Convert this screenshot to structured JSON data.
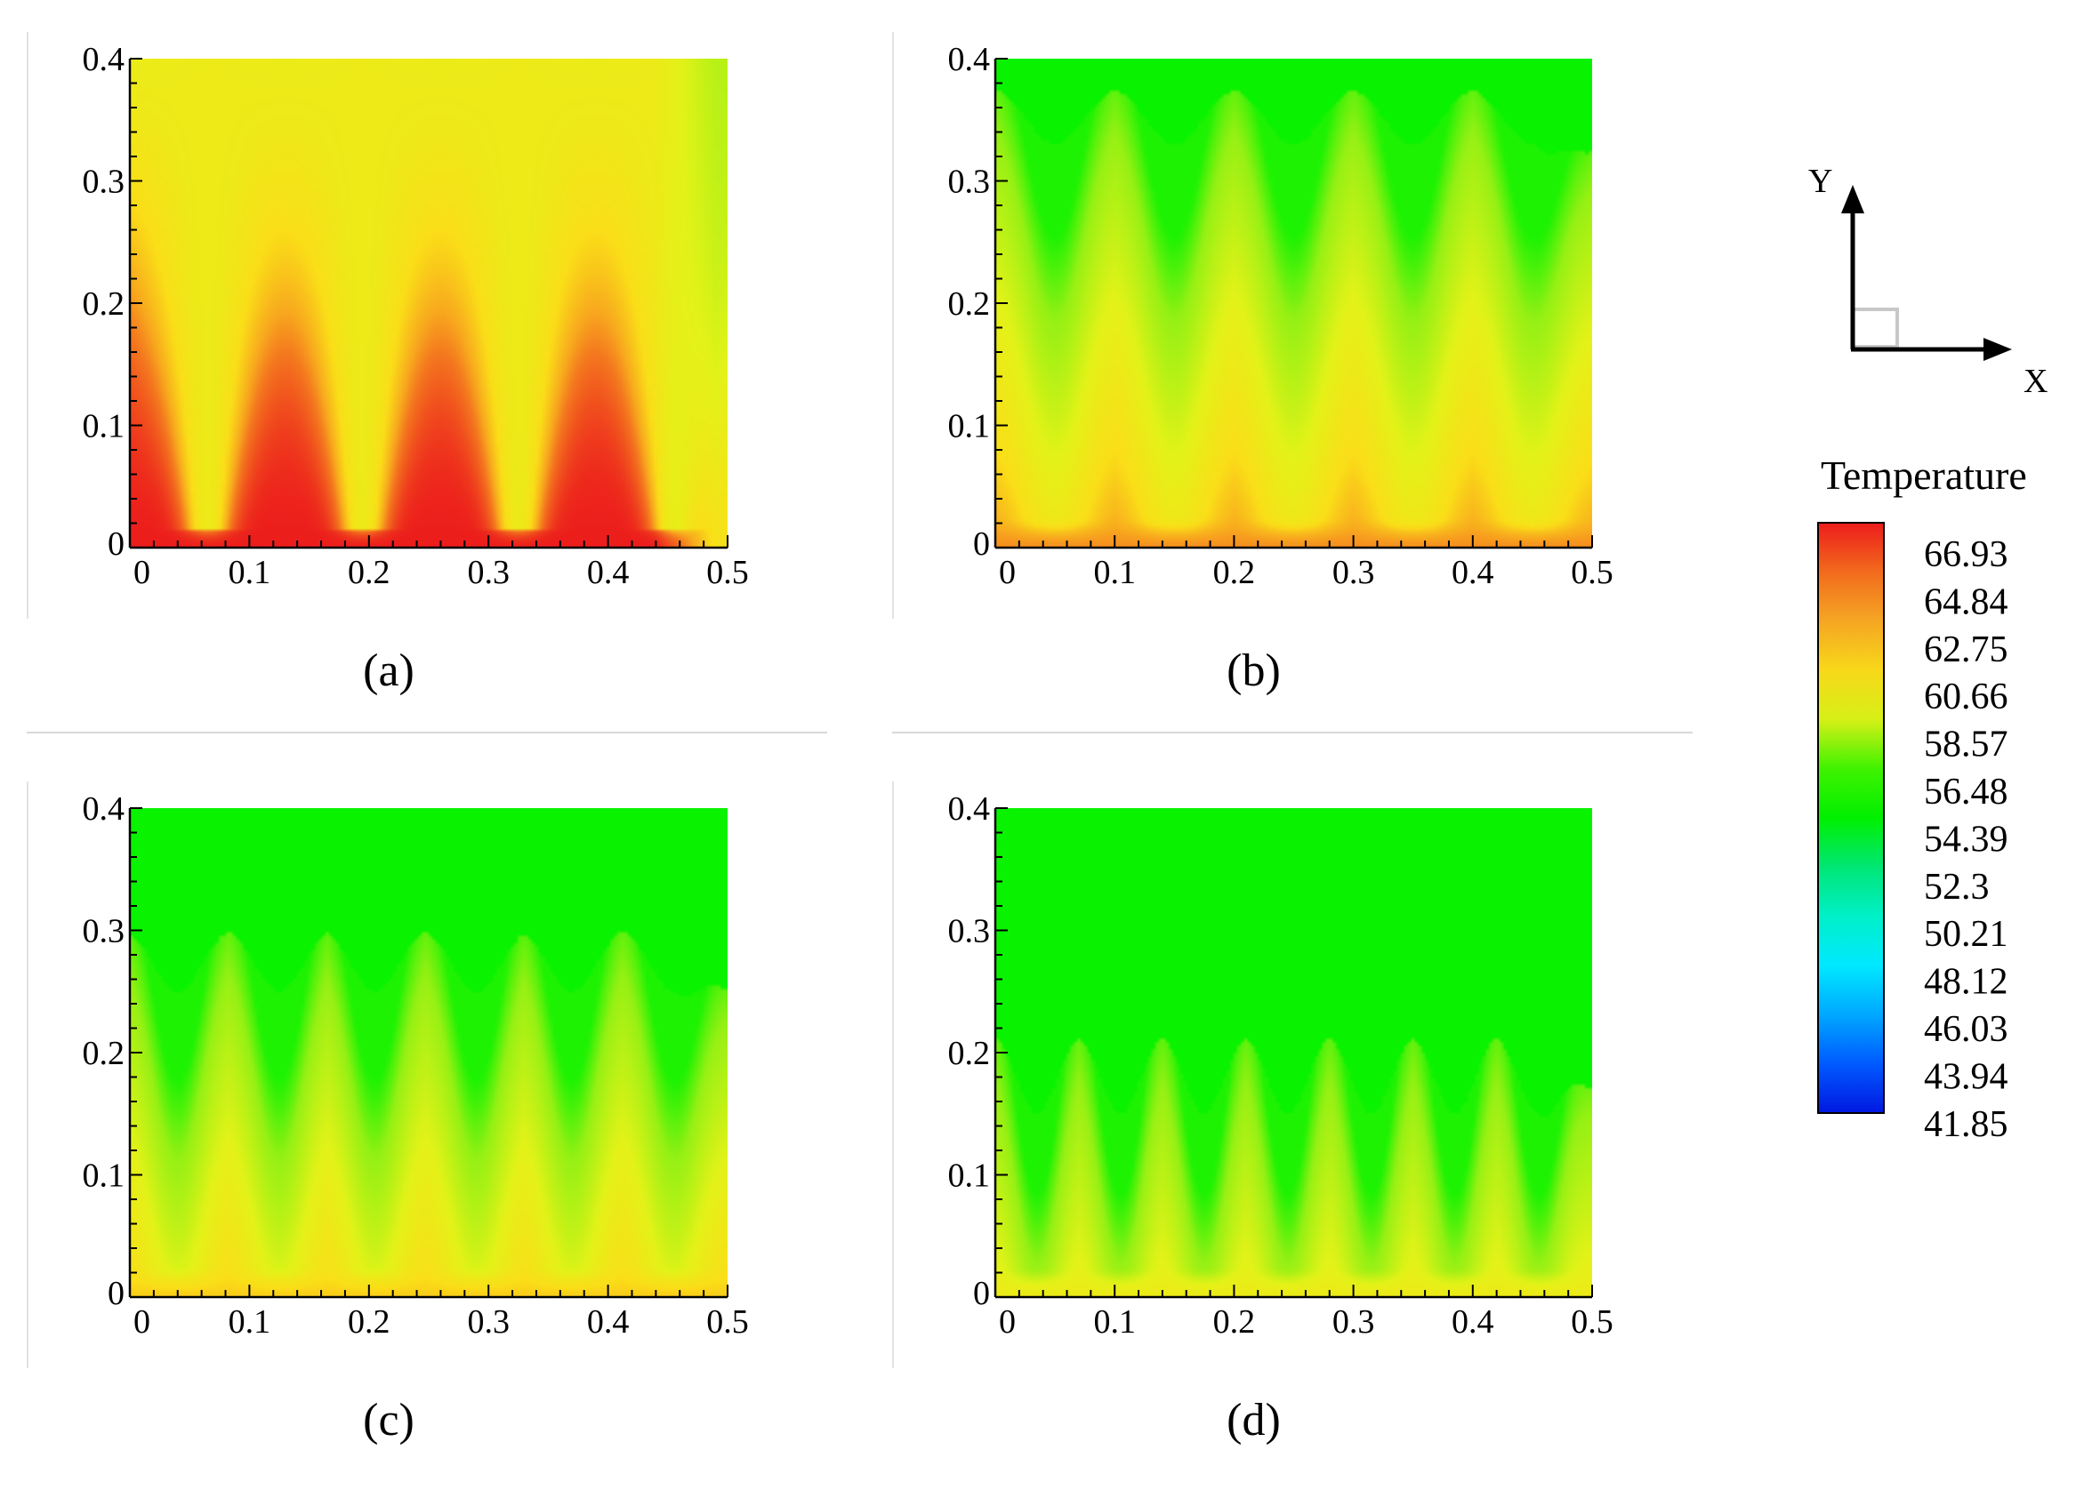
{
  "panels_type": "contour",
  "chart_data": [
    {
      "type": "heatmap",
      "caption": "(a)",
      "caption_letter": "a",
      "x_ticks": [
        "0",
        "0.1",
        "0.2",
        "0.3",
        "0.4",
        "0.5"
      ],
      "y_ticks": [
        "0",
        "0.1",
        "0.2",
        "0.3",
        "0.4"
      ],
      "xlim": [
        0,
        0.5
      ],
      "ylim": [
        0,
        0.4
      ],
      "fin_x": [
        0.065,
        0.195,
        0.325,
        0.455
      ],
      "fin_tip_y": 0.025,
      "base_temperature": 66.9,
      "top_temperature": 61.0,
      "fin_temperature": 61.5,
      "right_edge_temperature": 59.5
    },
    {
      "type": "heatmap",
      "caption": "(b)",
      "caption_letter": "b",
      "x_ticks": [
        "0",
        "0.1",
        "0.2",
        "0.3",
        "0.4",
        "0.5"
      ],
      "y_ticks": [
        "0",
        "0.1",
        "0.2",
        "0.3",
        "0.4"
      ],
      "xlim": [
        0,
        0.5
      ],
      "ylim": [
        0,
        0.4
      ],
      "fin_x": [
        0.05,
        0.15,
        0.25,
        0.35,
        0.45
      ],
      "fin_tip_y": 0.025,
      "base_temperature": 64.5,
      "plume_peak_y": 0.38,
      "plume_trough_y": 0.33,
      "top_temperature": 57.0
    },
    {
      "type": "heatmap",
      "caption": "(c)",
      "caption_letter": "c",
      "x_ticks": [
        "0",
        "0.1",
        "0.2",
        "0.3",
        "0.4",
        "0.5"
      ],
      "y_ticks": [
        "0",
        "0.1",
        "0.2",
        "0.3",
        "0.4"
      ],
      "xlim": [
        0,
        0.5
      ],
      "ylim": [
        0,
        0.4
      ],
      "fin_x": [
        0.04,
        0.125,
        0.205,
        0.29,
        0.37,
        0.455
      ],
      "fin_tip_y": 0.025,
      "base_temperature": 63.2,
      "plume_peak_y": 0.305,
      "plume_trough_y": 0.25,
      "top_temperature": 57.0
    },
    {
      "type": "heatmap",
      "caption": "(d)",
      "caption_letter": "d",
      "x_ticks": [
        "0",
        "0.1",
        "0.2",
        "0.3",
        "0.4",
        "0.5"
      ],
      "y_ticks": [
        "0",
        "0.1",
        "0.2",
        "0.3",
        "0.4"
      ],
      "xlim": [
        0,
        0.5
      ],
      "ylim": [
        0,
        0.4
      ],
      "fin_x": [
        0.035,
        0.105,
        0.175,
        0.245,
        0.315,
        0.385,
        0.455
      ],
      "fin_tip_y": 0.025,
      "base_temperature": 61.5,
      "plume_peak_y": 0.22,
      "plume_trough_y": 0.15,
      "top_temperature": 57.0
    }
  ],
  "legend": {
    "title": "Temperature",
    "values": [
      "66.93",
      "64.84",
      "62.75",
      "60.66",
      "58.57",
      "56.48",
      "54.39",
      "52.3",
      "50.21",
      "48.12",
      "46.03",
      "43.94",
      "41.85"
    ],
    "colors": [
      "#ed1c1c",
      "#f26b1d",
      "#f5a623",
      "#f8d81a",
      "#d6f016",
      "#3ff200",
      "#00f000",
      "#00e675",
      "#00f0c8",
      "#00e8ff",
      "#00a8ff",
      "#005aff",
      "#0018e0"
    ]
  },
  "axes_indicator": {
    "x_label": "X",
    "y_label": "Y"
  }
}
